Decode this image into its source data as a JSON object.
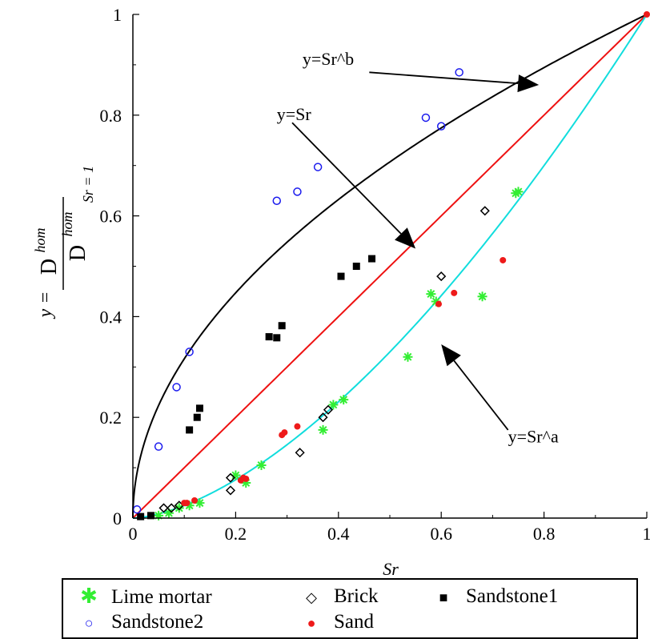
{
  "chart_data": {
    "type": "scatter",
    "xlabel": "Sr",
    "ylabel": {
      "prefix": "y =",
      "numerator": "D",
      "numerator_sup": "hom",
      "denominator": "D",
      "denominator_sup": "hom",
      "denominator_sub": "Sr = 1"
    },
    "xlim": [
      0,
      1
    ],
    "ylim": [
      0,
      1
    ],
    "x_ticks": [
      0,
      0.2,
      0.4,
      0.6,
      0.8,
      1
    ],
    "y_ticks": [
      0,
      0.2,
      0.4,
      0.6,
      0.8,
      1
    ],
    "x_tick_labels": [
      "0",
      "0.2",
      "0.4",
      "0.6",
      "0.8",
      "1"
    ],
    "y_tick_labels": [
      "0",
      "0.2",
      "0.4",
      "0.6",
      "0.8",
      "1"
    ],
    "grid": false,
    "legend_placement": "bottom",
    "series": [
      {
        "name": "Lime mortar",
        "marker": "star",
        "color": "#33ee33",
        "points": [
          [
            0.05,
            0.005
          ],
          [
            0.07,
            0.01
          ],
          [
            0.09,
            0.02
          ],
          [
            0.11,
            0.025
          ],
          [
            0.13,
            0.03
          ],
          [
            0.2,
            0.085
          ],
          [
            0.22,
            0.07
          ],
          [
            0.25,
            0.105
          ],
          [
            0.37,
            0.175
          ],
          [
            0.39,
            0.225
          ],
          [
            0.41,
            0.235
          ],
          [
            0.535,
            0.32
          ],
          [
            0.58,
            0.445
          ],
          [
            0.59,
            0.43
          ],
          [
            0.68,
            0.44
          ],
          [
            0.745,
            0.645
          ],
          [
            0.75,
            0.648
          ]
        ]
      },
      {
        "name": "Brick",
        "marker": "diamond",
        "color": "#000000",
        "points": [
          [
            0.06,
            0.02
          ],
          [
            0.075,
            0.02
          ],
          [
            0.09,
            0.025
          ],
          [
            0.19,
            0.08
          ],
          [
            0.19,
            0.055
          ],
          [
            0.325,
            0.13
          ],
          [
            0.37,
            0.2
          ],
          [
            0.38,
            0.215
          ],
          [
            0.6,
            0.48
          ],
          [
            0.685,
            0.61
          ]
        ]
      },
      {
        "name": "Sandstone1",
        "marker": "square",
        "color": "#000000",
        "points": [
          [
            0.015,
            0.003
          ],
          [
            0.035,
            0.005
          ],
          [
            0.11,
            0.175
          ],
          [
            0.125,
            0.2
          ],
          [
            0.13,
            0.218
          ],
          [
            0.265,
            0.36
          ],
          [
            0.28,
            0.358
          ],
          [
            0.29,
            0.382
          ],
          [
            0.405,
            0.48
          ],
          [
            0.435,
            0.5
          ],
          [
            0.465,
            0.515
          ]
        ]
      },
      {
        "name": "Sandstone2",
        "marker": "circle",
        "color": "#1a1aee",
        "points": [
          [
            0.008,
            0.017
          ],
          [
            0.05,
            0.142
          ],
          [
            0.085,
            0.26
          ],
          [
            0.11,
            0.33
          ],
          [
            0.28,
            0.63
          ],
          [
            0.32,
            0.648
          ],
          [
            0.36,
            0.697
          ],
          [
            0.57,
            0.795
          ],
          [
            0.6,
            0.778
          ],
          [
            0.635,
            0.885
          ]
        ]
      },
      {
        "name": "Sand",
        "marker": "dot",
        "color": "#ee1a1a",
        "points": [
          [
            0.1,
            0.03
          ],
          [
            0.105,
            0.03
          ],
          [
            0.12,
            0.035
          ],
          [
            0.21,
            0.075
          ],
          [
            0.215,
            0.08
          ],
          [
            0.22,
            0.078
          ],
          [
            0.29,
            0.165
          ],
          [
            0.295,
            0.17
          ],
          [
            0.32,
            0.182
          ],
          [
            0.595,
            0.425
          ],
          [
            0.625,
            0.447
          ],
          [
            0.72,
            0.512
          ],
          [
            1.0,
            1.0
          ]
        ]
      }
    ],
    "curves": [
      {
        "label": "y=Sr^b",
        "exponent": 0.5,
        "color": "#000000"
      },
      {
        "label": "y=Sr",
        "exponent": 1,
        "color": "#ee1111"
      },
      {
        "label": "y=Sr^a",
        "exponent": 1.6,
        "color": "#11dddd"
      }
    ],
    "annotations": [
      {
        "text": "y=Sr^b",
        "text_at": [
          0.33,
          0.9
        ],
        "arrow_from": [
          0.46,
          0.885
        ],
        "arrow_to": [
          0.79,
          0.86
        ]
      },
      {
        "text": "y=Sr",
        "text_at": [
          0.28,
          0.79
        ],
        "arrow_from": [
          0.31,
          0.785
        ],
        "arrow_to": [
          0.55,
          0.535
        ]
      },
      {
        "text": "y=Sr^a",
        "text_at": [
          0.73,
          0.15
        ],
        "arrow_from": [
          0.73,
          0.175
        ],
        "arrow_to": [
          0.6,
          0.345
        ]
      }
    ]
  }
}
